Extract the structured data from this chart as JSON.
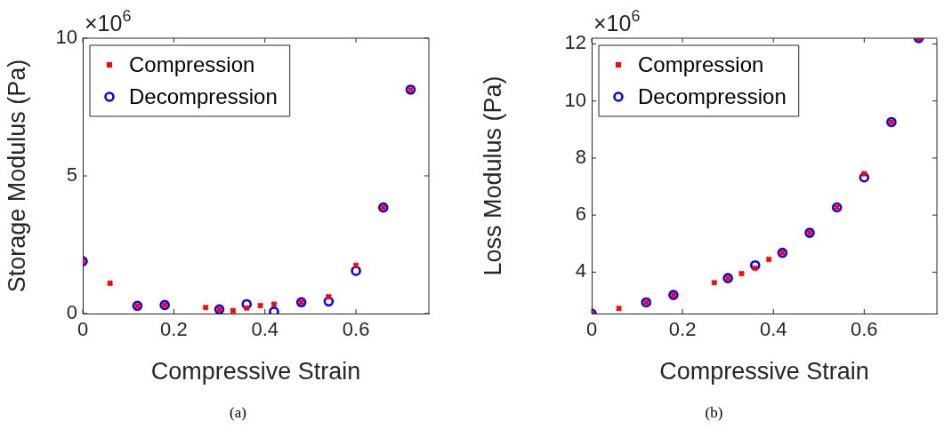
{
  "chart_data": [
    {
      "type": "scatter",
      "xlabel": "Compressive Strain",
      "ylabel": "Storage Modulus (Pa)",
      "annotations": [
        "×10$^{6}$",
        "(a)"
      ],
      "xlim": [
        0,
        0.76
      ],
      "xticks": [
        0,
        0.2,
        0.4,
        0.6
      ],
      "ylim": [
        0,
        10
      ],
      "yticks": [
        0,
        5,
        10
      ],
      "grid": false,
      "legend": "top left",
      "series": [
        {
          "name": "Compression",
          "color": "#ff0000",
          "marker": "cross",
          "x": [
            0,
            0.06,
            0.12,
            0.18,
            0.27,
            0.3,
            0.33,
            0.36,
            0.39,
            0.42,
            0.48,
            0.54,
            0.6,
            0.66,
            0.72
          ],
          "values": [
            1.9,
            1.1,
            0.28,
            0.31,
            0.22,
            0.15,
            0.1,
            0.2,
            0.29,
            0.34,
            0.41,
            0.61,
            1.75,
            3.85,
            8.13
          ]
        },
        {
          "name": "Decompression",
          "color": "#0000ff",
          "marker": "circle",
          "x": [
            0,
            0.12,
            0.18,
            0.3,
            0.36,
            0.42,
            0.48,
            0.54,
            0.6,
            0.66,
            0.72
          ],
          "values": [
            1.9,
            0.28,
            0.31,
            0.15,
            0.34,
            0.07,
            0.41,
            0.44,
            1.55,
            3.85,
            8.13
          ]
        }
      ]
    },
    {
      "type": "scatter",
      "xlabel": "Compressive Strain",
      "ylabel": "Loss Modulus (Pa)",
      "annotations": [
        "×10$^{6}$",
        "(b)"
      ],
      "xlim": [
        0,
        0.76
      ],
      "xticks": [
        0,
        0.2,
        0.4,
        0.6
      ],
      "ylim": [
        2.55,
        12.2
      ],
      "yticks": [
        4,
        6,
        8,
        10,
        12
      ],
      "grid": false,
      "legend": "top left",
      "series": [
        {
          "name": "Compression",
          "color": "#ff0000",
          "marker": "cross",
          "x": [
            0,
            0.06,
            0.12,
            0.18,
            0.27,
            0.3,
            0.33,
            0.36,
            0.39,
            0.42,
            0.48,
            0.54,
            0.6,
            0.66,
            0.72
          ],
          "values": [
            2.55,
            2.73,
            2.94,
            3.2,
            3.63,
            3.79,
            3.95,
            4.14,
            4.45,
            4.68,
            5.38,
            6.27,
            7.45,
            9.26,
            12.2
          ]
        },
        {
          "name": "Decompression",
          "color": "#0000ff",
          "marker": "circle",
          "x": [
            0,
            0.12,
            0.18,
            0.3,
            0.36,
            0.42,
            0.48,
            0.54,
            0.6,
            0.66,
            0.72
          ],
          "values": [
            2.55,
            2.94,
            3.2,
            3.79,
            4.24,
            4.68,
            5.38,
            6.27,
            7.32,
            9.26,
            12.2
          ]
        }
      ]
    }
  ]
}
